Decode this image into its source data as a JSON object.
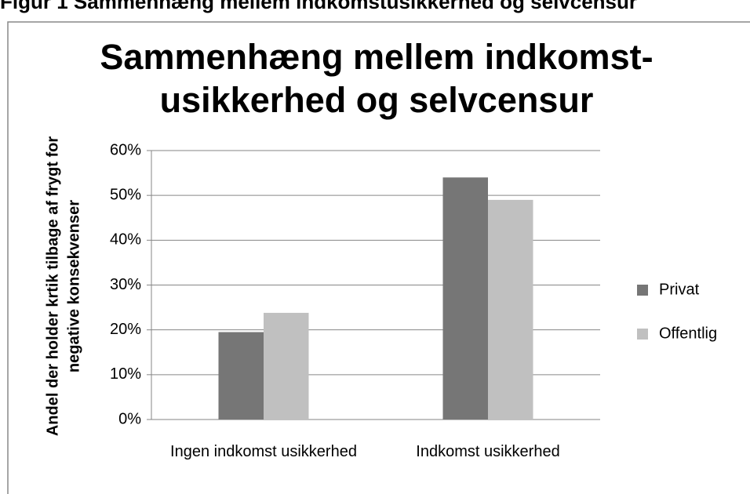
{
  "caption": "Figur 1 Sammenhæng mellem indkomstusikkerhed og selvcensur",
  "chart_data": {
    "type": "bar",
    "title": [
      "Sammenhæng mellem indkomst-",
      "usikkerhed og selvcensur"
    ],
    "y_label": [
      "Andel der holder krtik tilbage af frygt for",
      "negative konsekvenser"
    ],
    "categories": [
      "Ingen indkomst usikkerhed",
      "Indkomst usikkerhed"
    ],
    "series": [
      {
        "name": "Privat",
        "color": "#767676",
        "values": [
          19.5,
          54
        ]
      },
      {
        "name": "Offentlig",
        "color": "#c0c0c0",
        "values": [
          23.8,
          49
        ]
      }
    ],
    "ylim": [
      0,
      60
    ],
    "yticks": [
      {
        "value": 0,
        "label": "0%"
      },
      {
        "value": 10,
        "label": "10%"
      },
      {
        "value": 20,
        "label": "20%"
      },
      {
        "value": 30,
        "label": "30%"
      },
      {
        "value": 40,
        "label": "40%"
      },
      {
        "value": 50,
        "label": "50%"
      },
      {
        "value": 60,
        "label": "60%"
      }
    ],
    "grid": true,
    "legend": "right"
  }
}
